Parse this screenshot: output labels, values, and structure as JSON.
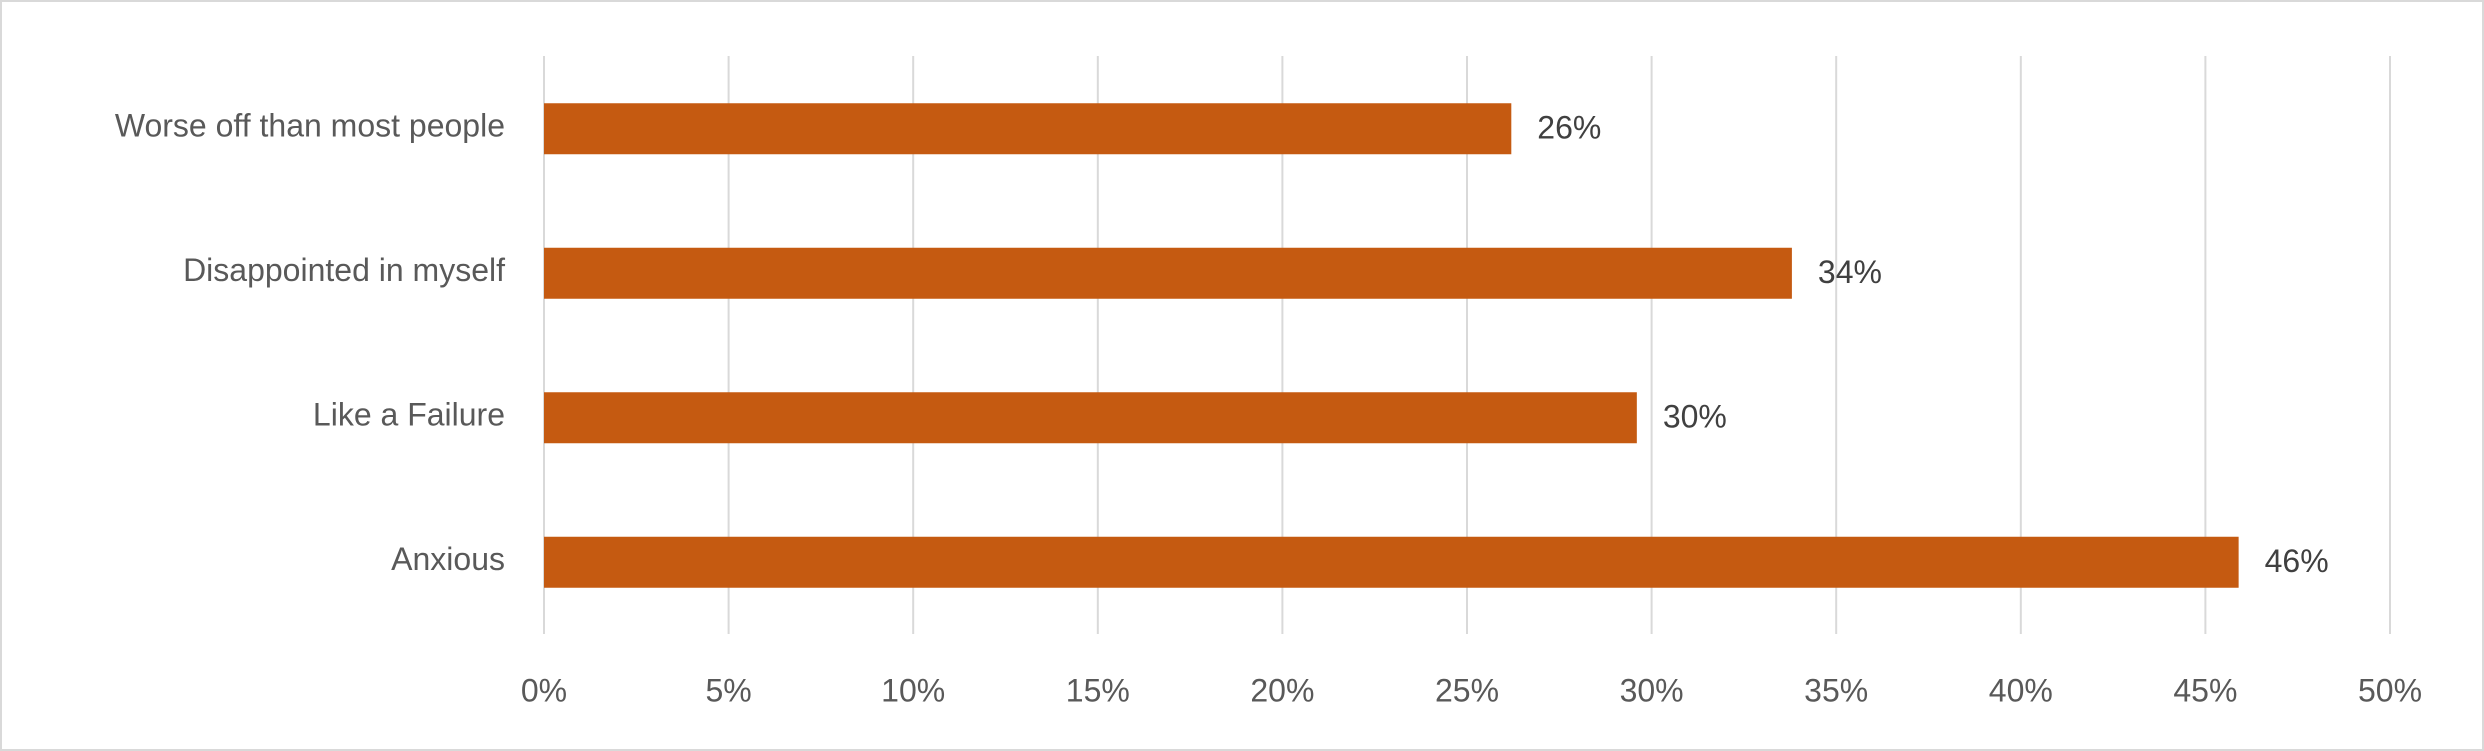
{
  "chart_data": {
    "type": "bar",
    "orientation": "horizontal",
    "categories": [
      "Worse off than most people",
      "Disappointed in myself",
      "Like a Failure",
      "Anxious"
    ],
    "values": [
      26.2,
      33.8,
      29.6,
      45.9
    ],
    "value_labels": [
      "26%",
      "34%",
      "30%",
      "46%"
    ],
    "color": "#c55a11",
    "xlim": [
      0,
      50
    ],
    "xticks": [
      {
        "value": 0,
        "label": "0%"
      },
      {
        "value": 5,
        "label": "5%"
      },
      {
        "value": 10,
        "label": "10%"
      },
      {
        "value": 15,
        "label": "15%"
      },
      {
        "value": 20,
        "label": "20%"
      },
      {
        "value": 25,
        "label": "25%"
      },
      {
        "value": 30,
        "label": "30%"
      },
      {
        "value": 35,
        "label": "35%"
      },
      {
        "value": 40,
        "label": "40%"
      },
      {
        "value": 45,
        "label": "45%"
      },
      {
        "value": 50,
        "label": "50%"
      }
    ],
    "grid": true
  }
}
